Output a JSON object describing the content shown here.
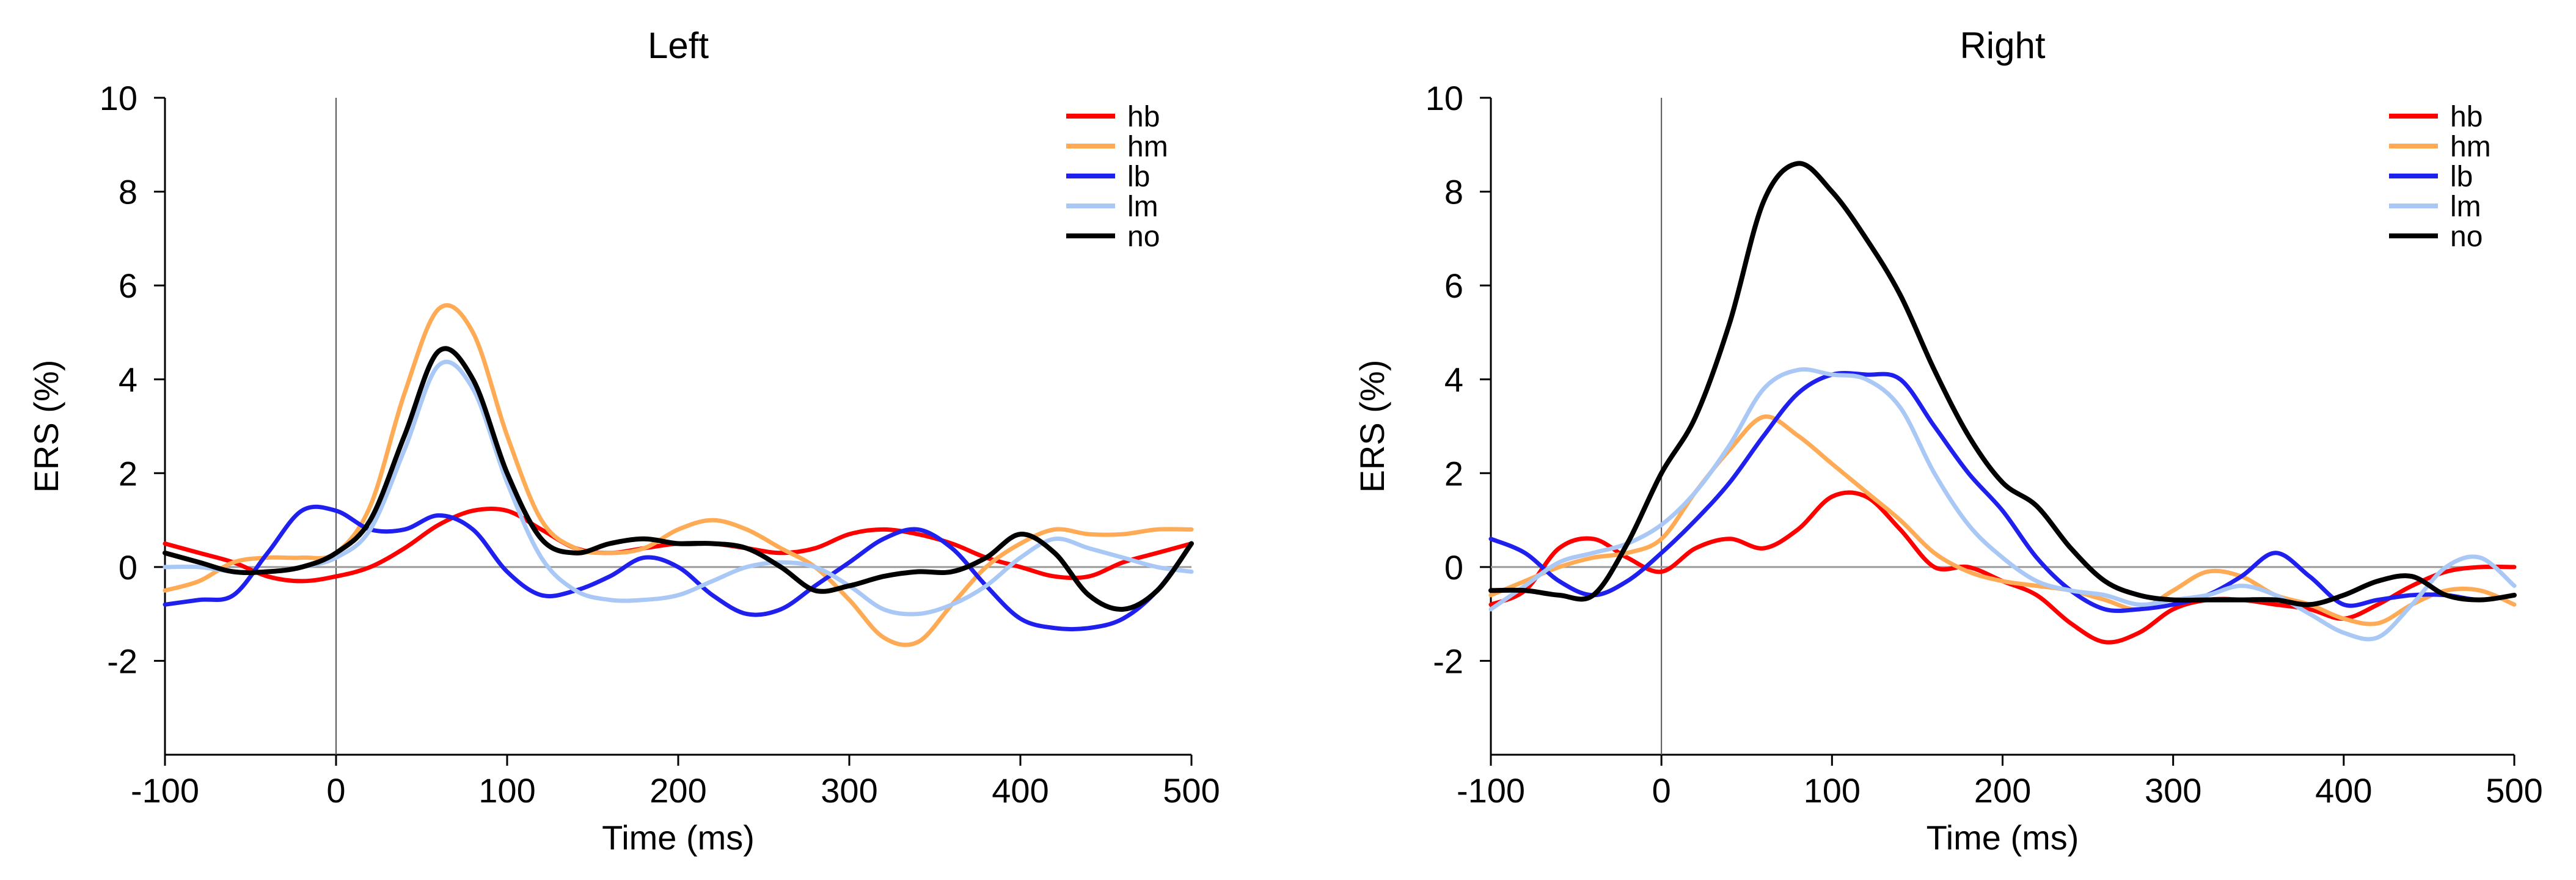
{
  "chart_data": [
    {
      "type": "line",
      "title": "Left",
      "xlabel": "Time (ms)",
      "ylabel": "ERS (%)",
      "xlim": [
        -100,
        500
      ],
      "ylim": [
        -4,
        10
      ],
      "xticks": [
        -100,
        0,
        100,
        200,
        300,
        400,
        500
      ],
      "yticks": [
        -2,
        0,
        2,
        4,
        6,
        8,
        10
      ],
      "xtick_labels": [
        "-100",
        "0",
        "100",
        "200",
        "300",
        "400",
        "500"
      ],
      "ytick_labels": [
        "-2",
        "0",
        "2",
        "4",
        "6",
        "8",
        "10"
      ],
      "zero_line_x": 0,
      "zero_line_y": 0,
      "legend": "top-right",
      "series": [
        {
          "name": "hb",
          "color": "#ff0000",
          "x": [
            -100,
            -80,
            -60,
            -40,
            -20,
            0,
            20,
            40,
            60,
            80,
            100,
            120,
            140,
            160,
            180,
            200,
            220,
            240,
            260,
            280,
            300,
            320,
            340,
            360,
            380,
            400,
            420,
            440,
            460,
            480,
            500
          ],
          "values": [
            0.5,
            0.3,
            0.1,
            -0.2,
            -0.3,
            -0.2,
            0.0,
            0.4,
            0.9,
            1.2,
            1.2,
            0.8,
            0.4,
            0.3,
            0.4,
            0.5,
            0.5,
            0.4,
            0.3,
            0.4,
            0.7,
            0.8,
            0.7,
            0.5,
            0.2,
            0.0,
            -0.2,
            -0.2,
            0.1,
            0.3,
            0.5
          ]
        },
        {
          "name": "hm",
          "color": "#ffaa55",
          "x": [
            -100,
            -80,
            -60,
            -40,
            -20,
            0,
            20,
            40,
            60,
            80,
            100,
            120,
            140,
            160,
            180,
            200,
            220,
            240,
            260,
            280,
            300,
            320,
            340,
            360,
            380,
            400,
            420,
            440,
            460,
            480,
            500
          ],
          "values": [
            -0.5,
            -0.3,
            0.1,
            0.2,
            0.2,
            0.3,
            1.3,
            3.7,
            5.5,
            5.0,
            2.8,
            1.0,
            0.4,
            0.3,
            0.4,
            0.8,
            1.0,
            0.8,
            0.4,
            0.0,
            -0.7,
            -1.5,
            -1.6,
            -0.8,
            0.0,
            0.5,
            0.8,
            0.7,
            0.7,
            0.8,
            0.8
          ]
        },
        {
          "name": "lb",
          "color": "#1f1fee",
          "x": [
            -100,
            -80,
            -60,
            -40,
            -20,
            0,
            20,
            40,
            60,
            80,
            100,
            120,
            140,
            160,
            180,
            200,
            220,
            240,
            260,
            280,
            300,
            320,
            340,
            360,
            380,
            400,
            420,
            440,
            460,
            480,
            500
          ],
          "values": [
            -0.8,
            -0.7,
            -0.6,
            0.3,
            1.2,
            1.2,
            0.8,
            0.8,
            1.1,
            0.8,
            -0.1,
            -0.6,
            -0.5,
            -0.2,
            0.2,
            0.0,
            -0.6,
            -1.0,
            -0.9,
            -0.4,
            0.1,
            0.6,
            0.8,
            0.4,
            -0.4,
            -1.1,
            -1.3,
            -1.3,
            -1.1,
            -0.5,
            0.5
          ]
        },
        {
          "name": "lm",
          "color": "#a9c8f5",
          "x": [
            -100,
            -80,
            -60,
            -40,
            -20,
            0,
            20,
            40,
            60,
            80,
            100,
            120,
            140,
            160,
            180,
            200,
            220,
            240,
            260,
            280,
            300,
            320,
            340,
            360,
            380,
            400,
            420,
            440,
            460,
            480,
            500
          ],
          "values": [
            0.0,
            0.0,
            -0.1,
            -0.1,
            0.0,
            0.2,
            0.8,
            2.5,
            4.3,
            3.8,
            1.8,
            0.2,
            -0.5,
            -0.7,
            -0.7,
            -0.6,
            -0.3,
            0.0,
            0.1,
            0.0,
            -0.4,
            -0.9,
            -1.0,
            -0.8,
            -0.4,
            0.2,
            0.6,
            0.4,
            0.2,
            0.0,
            -0.1
          ]
        },
        {
          "name": "no",
          "color": "#000000",
          "x": [
            -100,
            -80,
            -60,
            -40,
            -20,
            0,
            20,
            40,
            60,
            80,
            100,
            120,
            140,
            160,
            180,
            200,
            220,
            240,
            260,
            280,
            300,
            320,
            340,
            360,
            380,
            400,
            420,
            440,
            460,
            480,
            500
          ],
          "values": [
            0.3,
            0.1,
            -0.1,
            -0.1,
            0.0,
            0.3,
            1.0,
            2.8,
            4.6,
            4.0,
            2.0,
            0.6,
            0.3,
            0.5,
            0.6,
            0.5,
            0.5,
            0.4,
            0.0,
            -0.5,
            -0.4,
            -0.2,
            -0.1,
            -0.1,
            0.2,
            0.7,
            0.3,
            -0.6,
            -0.9,
            -0.5,
            0.5
          ]
        }
      ]
    },
    {
      "type": "line",
      "title": "Right",
      "xlabel": "Time (ms)",
      "ylabel": "ERS (%)",
      "xlim": [
        -100,
        500
      ],
      "ylim": [
        -4,
        10
      ],
      "xticks": [
        -100,
        0,
        100,
        200,
        300,
        400,
        500
      ],
      "yticks": [
        -2,
        0,
        2,
        4,
        6,
        8,
        10
      ],
      "xtick_labels": [
        "-100",
        "0",
        "100",
        "200",
        "300",
        "400",
        "500"
      ],
      "ytick_labels": [
        "-2",
        "0",
        "2",
        "4",
        "6",
        "8",
        "10"
      ],
      "zero_line_x": 0,
      "zero_line_y": 0,
      "legend": "top-right",
      "series": [
        {
          "name": "hb",
          "color": "#ff0000",
          "x": [
            -100,
            -80,
            -60,
            -40,
            -20,
            0,
            20,
            40,
            60,
            80,
            100,
            120,
            140,
            160,
            180,
            200,
            220,
            240,
            260,
            280,
            300,
            320,
            340,
            360,
            380,
            400,
            420,
            440,
            460,
            480,
            500
          ],
          "values": [
            -0.8,
            -0.5,
            0.4,
            0.6,
            0.2,
            -0.1,
            0.4,
            0.6,
            0.4,
            0.8,
            1.5,
            1.5,
            0.8,
            0.0,
            0.0,
            -0.3,
            -0.6,
            -1.2,
            -1.6,
            -1.4,
            -0.9,
            -0.7,
            -0.7,
            -0.8,
            -0.9,
            -1.1,
            -0.8,
            -0.4,
            -0.1,
            0.0,
            0.0
          ]
        },
        {
          "name": "hm",
          "color": "#ffaa55",
          "x": [
            -100,
            -80,
            -60,
            -40,
            -20,
            0,
            20,
            40,
            60,
            80,
            100,
            120,
            140,
            160,
            180,
            200,
            220,
            240,
            260,
            280,
            300,
            320,
            340,
            360,
            380,
            400,
            420,
            440,
            460,
            480,
            500
          ],
          "values": [
            -0.6,
            -0.3,
            0.0,
            0.2,
            0.3,
            0.6,
            1.6,
            2.5,
            3.2,
            2.8,
            2.2,
            1.6,
            1.0,
            0.3,
            -0.1,
            -0.3,
            -0.4,
            -0.5,
            -0.7,
            -0.9,
            -0.5,
            -0.1,
            -0.2,
            -0.6,
            -0.8,
            -1.1,
            -1.2,
            -0.8,
            -0.5,
            -0.5,
            -0.8
          ]
        },
        {
          "name": "lb",
          "color": "#1f1fee",
          "x": [
            -100,
            -80,
            -60,
            -40,
            -20,
            0,
            20,
            40,
            60,
            80,
            100,
            120,
            140,
            160,
            180,
            200,
            220,
            240,
            260,
            280,
            300,
            320,
            340,
            360,
            380,
            400,
            420,
            440,
            460,
            480,
            500
          ],
          "values": [
            0.6,
            0.3,
            -0.3,
            -0.6,
            -0.3,
            0.3,
            1.0,
            1.8,
            2.8,
            3.7,
            4.1,
            4.1,
            4.0,
            3.0,
            2.0,
            1.2,
            0.2,
            -0.5,
            -0.9,
            -0.9,
            -0.8,
            -0.6,
            -0.2,
            0.3,
            -0.2,
            -0.8,
            -0.7,
            -0.6,
            -0.6,
            -0.7,
            -0.6
          ]
        },
        {
          "name": "lm",
          "color": "#a9c8f5",
          "x": [
            -100,
            -80,
            -60,
            -40,
            -20,
            0,
            20,
            40,
            60,
            80,
            100,
            120,
            140,
            160,
            180,
            200,
            220,
            240,
            260,
            280,
            300,
            320,
            340,
            360,
            380,
            400,
            420,
            440,
            460,
            480,
            500
          ],
          "values": [
            -0.9,
            -0.4,
            0.1,
            0.3,
            0.5,
            0.9,
            1.6,
            2.6,
            3.8,
            4.2,
            4.1,
            4.0,
            3.4,
            2.0,
            0.9,
            0.2,
            -0.3,
            -0.5,
            -0.6,
            -0.8,
            -0.7,
            -0.6,
            -0.4,
            -0.6,
            -1.0,
            -1.4,
            -1.5,
            -0.8,
            0.0,
            0.2,
            -0.4
          ]
        },
        {
          "name": "no",
          "color": "#000000",
          "x": [
            -100,
            -80,
            -60,
            -40,
            -20,
            0,
            20,
            40,
            60,
            80,
            100,
            120,
            140,
            160,
            180,
            200,
            220,
            240,
            260,
            280,
            300,
            320,
            340,
            360,
            380,
            400,
            420,
            440,
            460,
            480,
            500
          ],
          "values": [
            -0.5,
            -0.5,
            -0.6,
            -0.6,
            0.5,
            2.0,
            3.2,
            5.2,
            7.8,
            8.6,
            8.0,
            7.0,
            5.8,
            4.2,
            2.8,
            1.8,
            1.3,
            0.4,
            -0.3,
            -0.6,
            -0.7,
            -0.7,
            -0.7,
            -0.7,
            -0.8,
            -0.6,
            -0.3,
            -0.2,
            -0.6,
            -0.7,
            -0.6
          ]
        }
      ]
    }
  ]
}
